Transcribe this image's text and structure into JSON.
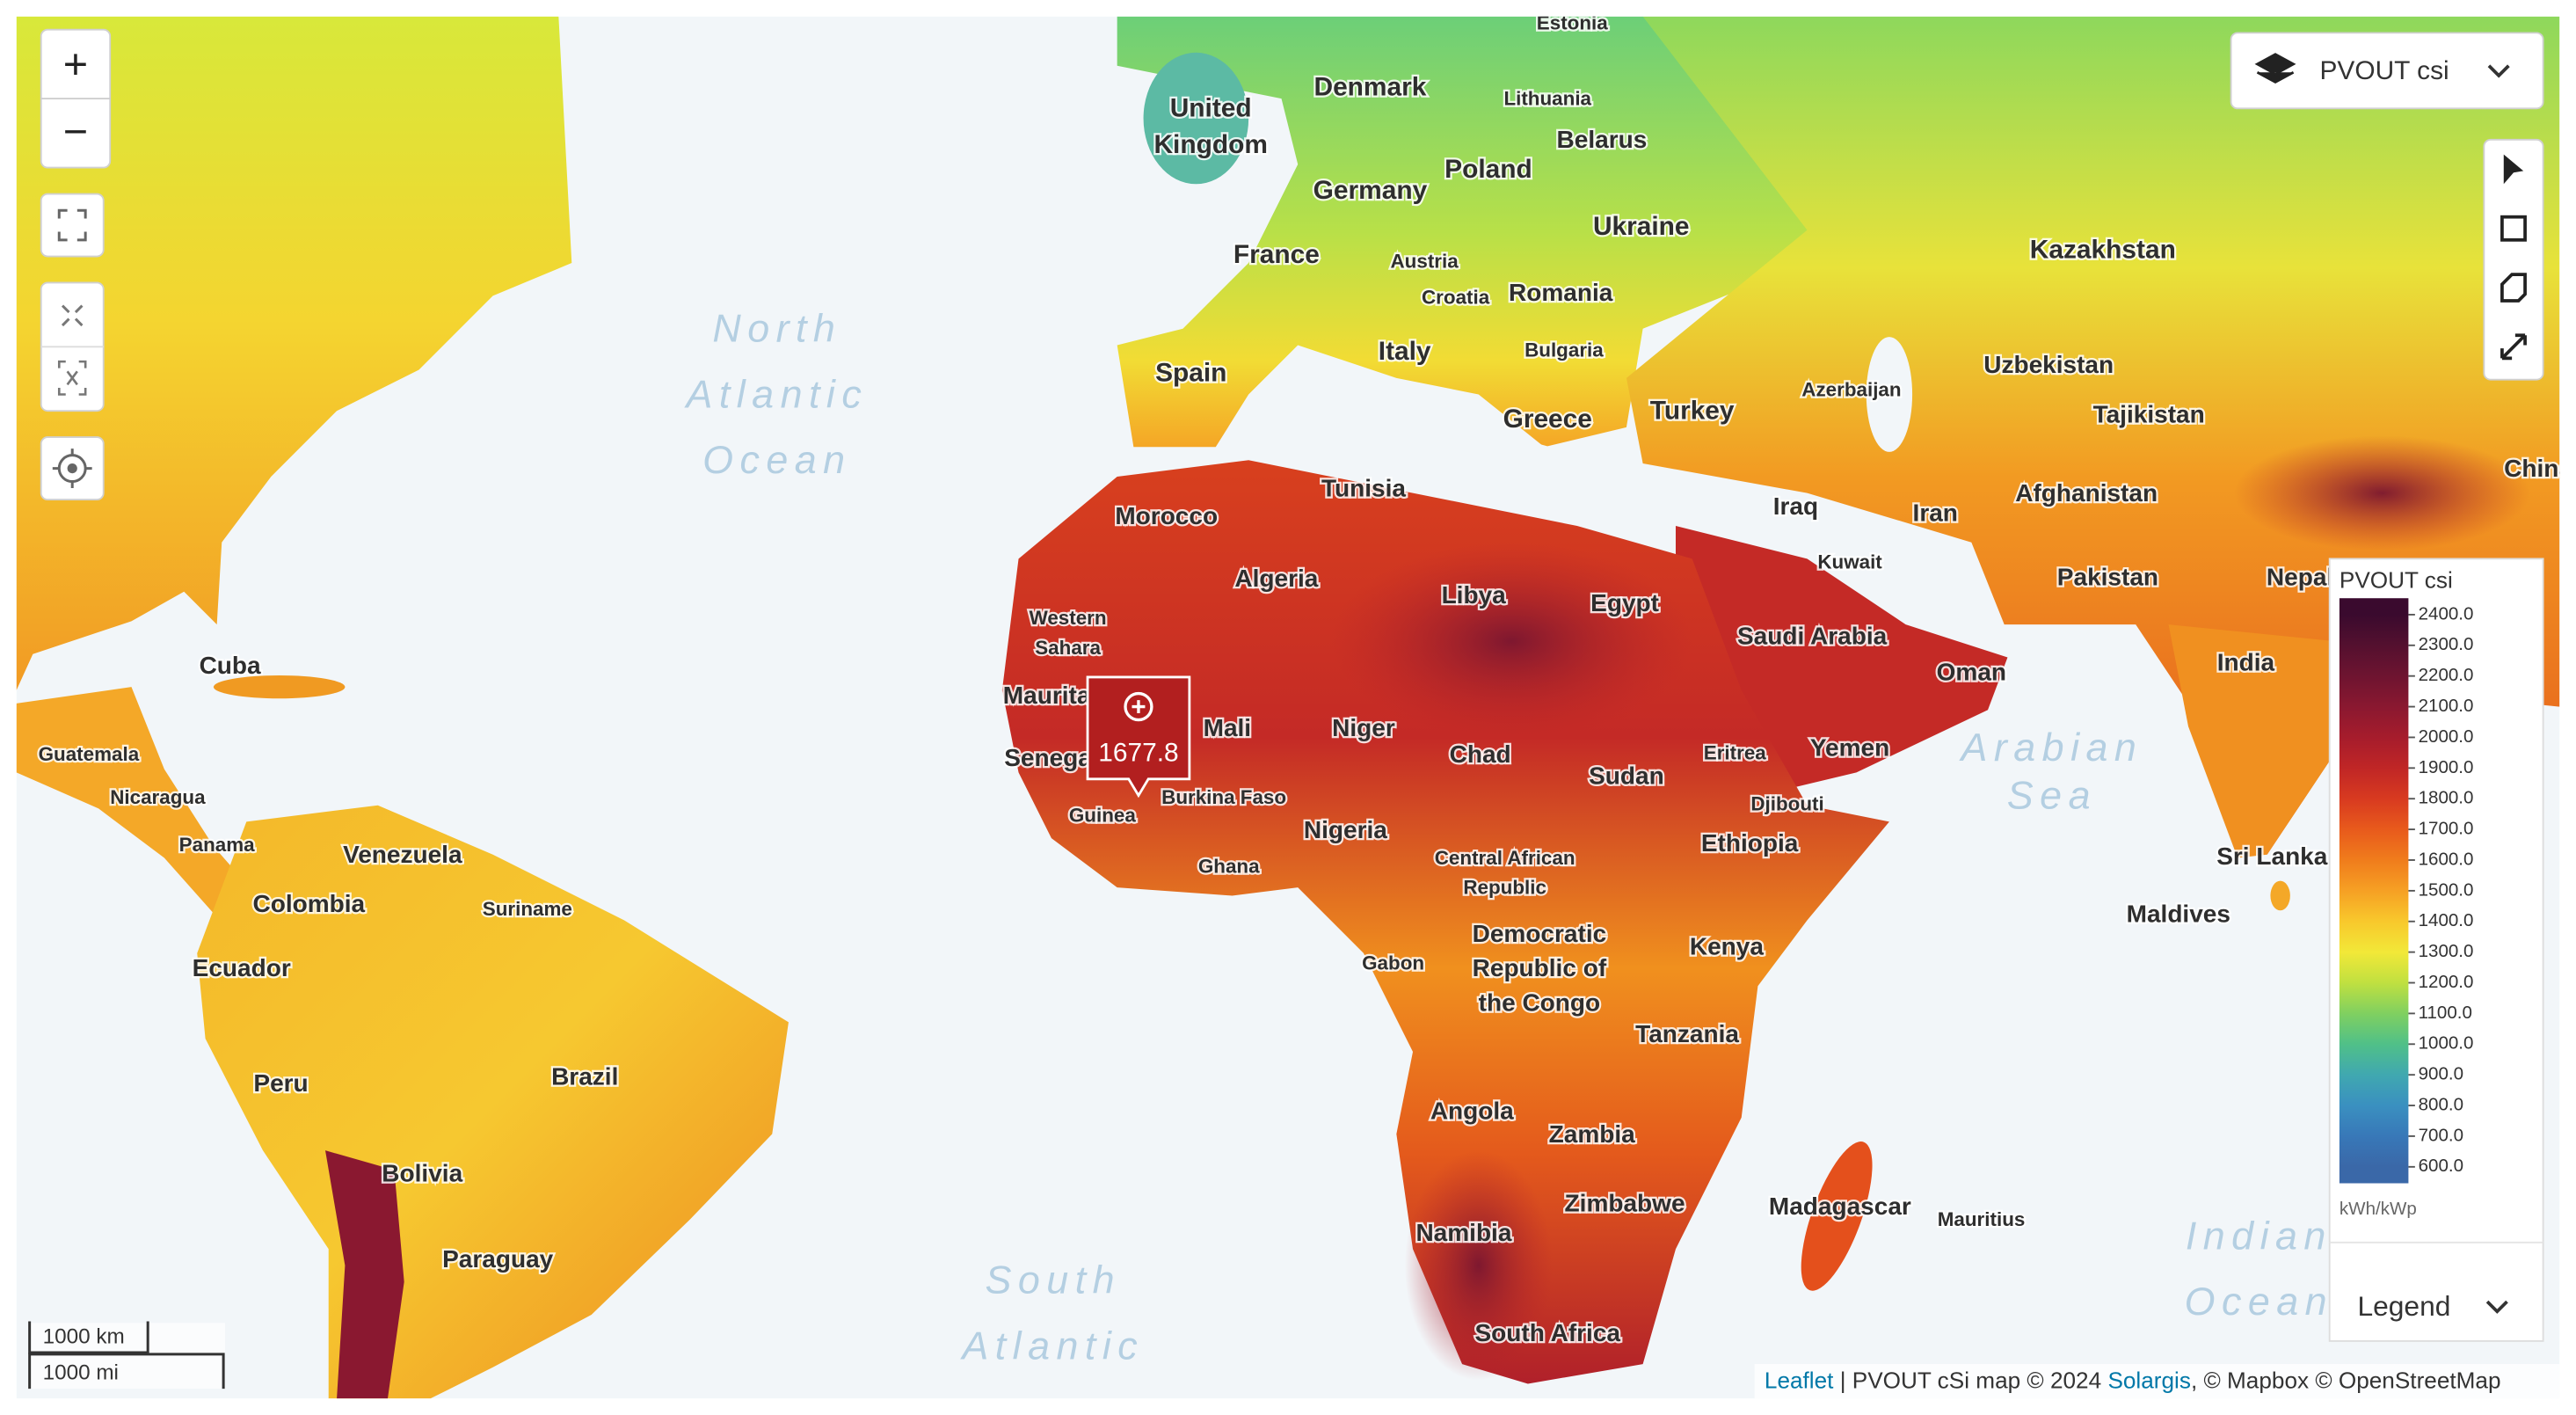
{
  "map": {
    "layer_selector": "PVOUT csi",
    "zoom_in": "+",
    "zoom_out": "−",
    "country_labels": [
      "Estonia",
      "Denmark",
      [
        "United",
        "Kingdom"
      ],
      "Lithuania",
      "Belarus",
      "Poland",
      "Germany",
      "Ukraine",
      "France",
      "Austria",
      "Romania",
      "Croatia",
      "Kazakhstan",
      "Italy",
      "Bulgaria",
      "Spain",
      "Azerbaijan",
      "Uzbekistan",
      "Greece",
      "Turkey",
      "Tajikistan",
      "Tunisia",
      "Afghanistan",
      "Iraq",
      "Iran",
      "Morocco",
      "Kuwait",
      "Algeria",
      "Libya",
      "Egypt",
      "Pakistan",
      [
        "Western",
        "Sahara"
      ],
      "Saudi Arabia",
      "Oman",
      "India",
      "Cuba",
      "Mali",
      "Niger",
      "Chad",
      "Eritrea",
      "Yemen",
      "Guatemala",
      "Senegal",
      "Sudan",
      "Burkina Faso",
      "Nicaragua",
      "Djibouti",
      "Guinea",
      "Nigeria",
      "Ethiopia",
      "Panama",
      "Venezuela",
      [
        "Central African",
        "Republic"
      ],
      "Ghana",
      "Sri Lanka",
      "Colombia",
      "Suriname",
      "Maldives",
      [
        "Democratic",
        "Republic of",
        "the Congo"
      ],
      "Kenya",
      "Gabon",
      "Ecuador",
      "Tanzania",
      "Brazil",
      "Peru",
      "Angola",
      "Zambia",
      "Bolivia",
      "Zimbabwe",
      "Madagascar",
      "Mauritius",
      "Namibia",
      "Paraguay",
      "South Africa",
      "Mauritania",
      "China",
      "Nepal"
    ],
    "ocean_labels": [
      [
        "North",
        "Atlantic",
        "Ocean"
      ],
      [
        "South",
        "Atlantic"
      ],
      [
        "Arabian",
        "Sea"
      ],
      [
        "Indian",
        "Ocean"
      ]
    ],
    "marker": {
      "value": 1677.8
    },
    "scale_bar": [
      "1000 km",
      "1000 mi"
    ]
  },
  "legend": {
    "title": "PVOUT csi",
    "ticks": [
      {
        "value": 2400,
        "label": "2400.0"
      },
      {
        "value": 2300,
        "label": "2300.0"
      },
      {
        "value": 2200,
        "label": "2200.0"
      },
      {
        "value": 2100,
        "label": "2100.0"
      },
      {
        "value": 2000,
        "label": "2000.0"
      },
      {
        "value": 1900,
        "label": "1900.0"
      },
      {
        "value": 1800,
        "label": "1800.0"
      },
      {
        "value": 1700,
        "label": "1700.0"
      },
      {
        "value": 1600,
        "label": "1600.0"
      },
      {
        "value": 1500,
        "label": "1500.0"
      },
      {
        "value": 1400,
        "label": "1400.0"
      },
      {
        "value": 1300,
        "label": "1300.0"
      },
      {
        "value": 1200,
        "label": "1200.0"
      },
      {
        "value": 1100,
        "label": "1100.0"
      },
      {
        "value": 1000,
        "label": "1000.0"
      },
      {
        "value": 900,
        "label": "900.0"
      },
      {
        "value": 800,
        "label": "800.0"
      },
      {
        "value": 700,
        "label": "700.0"
      },
      {
        "value": 600,
        "label": "600.0"
      }
    ],
    "colors": [
      "#3a0a2e",
      "#54102f",
      "#6e1430",
      "#8a1830",
      "#a61c2c",
      "#c02626",
      "#d83a20",
      "#e85a1c",
      "#f07c1c",
      "#f6a024",
      "#f8c82c",
      "#f2e838",
      "#c0e040",
      "#80d060",
      "#50c088",
      "#40a8b0",
      "#3a90c0",
      "#3878b8",
      "#3a68a8"
    ],
    "unit": "kWh/kWp",
    "button": "Legend"
  },
  "attribution": {
    "link1": "Leaflet",
    "text1": "| PVOUT cSi map © 2024",
    "link2": "Solargis",
    "text2": ", © Mapbox © OpenStreetMap"
  }
}
